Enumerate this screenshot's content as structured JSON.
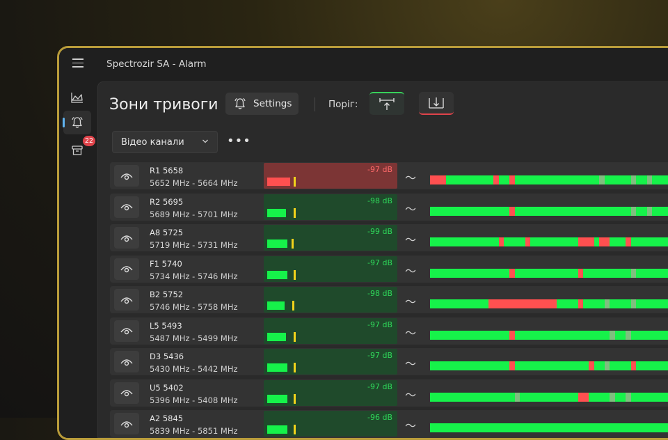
{
  "window": {
    "title": "Spectrozir SA - Alarm"
  },
  "sidebar": {
    "alarm_badge": "22"
  },
  "page": {
    "title": "Зони тривоги",
    "settings_label": "Settings",
    "threshold_label": "Поріг:",
    "filter_value": "Відео канали",
    "more_label": "•••"
  },
  "colors": {
    "ok": "#16f24a",
    "alert": "#ff5050",
    "idle": "#6f7c8c",
    "peak": "#f2d31b",
    "accent": "#37d15a"
  },
  "channels": [
    {
      "name": "R1 5658",
      "range": "5652 MHz - 5664 MHz",
      "db": "-97 dB",
      "alert": true,
      "level": 0.18,
      "peak": 0.21,
      "timeline": [
        [
          "#ff5050",
          0,
          0.03
        ],
        [
          "#16f24a",
          0.03,
          0.12
        ],
        [
          "#ff5050",
          0.12,
          0.13
        ],
        [
          "#16f24a",
          0.13,
          0.15
        ],
        [
          "#ff5050",
          0.15,
          0.16
        ],
        [
          "#16f24a",
          0.16,
          0.32
        ],
        [
          "#7fbf7f",
          0.32,
          0.33
        ],
        [
          "#16f24a",
          0.33,
          0.38
        ],
        [
          "#7fbf7f",
          0.38,
          0.39
        ],
        [
          "#16f24a",
          0.39,
          0.41
        ],
        [
          "#7fbf7f",
          0.41,
          0.42
        ],
        [
          "#16f24a",
          0.42,
          0.46
        ]
      ]
    },
    {
      "name": "R2 5695",
      "range": "5689 MHz - 5701 MHz",
      "db": "-98 dB",
      "alert": false,
      "level": 0.15,
      "peak": 0.21,
      "timeline": [
        [
          "#16f24a",
          0,
          0.15
        ],
        [
          "#ff5050",
          0.15,
          0.16
        ],
        [
          "#16f24a",
          0.16,
          0.38
        ],
        [
          "#7fbf7f",
          0.38,
          0.39
        ],
        [
          "#16f24a",
          0.39,
          0.41
        ],
        [
          "#7fbf7f",
          0.41,
          0.42
        ],
        [
          "#16f24a",
          0.42,
          0.46
        ]
      ]
    },
    {
      "name": "A8 5725",
      "range": "5719 MHz - 5731 MHz",
      "db": "-99 dB",
      "alert": false,
      "level": 0.16,
      "peak": 0.19,
      "timeline": [
        [
          "#16f24a",
          0,
          0.13
        ],
        [
          "#ff5050",
          0.13,
          0.14
        ],
        [
          "#16f24a",
          0.14,
          0.18
        ],
        [
          "#ff5050",
          0.18,
          0.19
        ],
        [
          "#16f24a",
          0.19,
          0.28
        ],
        [
          "#ff5050",
          0.28,
          0.31
        ],
        [
          "#16f24a",
          0.31,
          0.32
        ],
        [
          "#ff5050",
          0.32,
          0.34
        ],
        [
          "#16f24a",
          0.34,
          0.37
        ],
        [
          "#ff5050",
          0.37,
          0.38
        ],
        [
          "#16f24a",
          0.38,
          0.46
        ]
      ]
    },
    {
      "name": "F1 5740",
      "range": "5734 MHz - 5746 MHz",
      "db": "-97 dB",
      "alert": false,
      "level": 0.16,
      "peak": 0.21,
      "timeline": [
        [
          "#16f24a",
          0,
          0.15
        ],
        [
          "#ff5050",
          0.15,
          0.16
        ],
        [
          "#16f24a",
          0.16,
          0.28
        ],
        [
          "#ff5050",
          0.28,
          0.29
        ],
        [
          "#16f24a",
          0.29,
          0.38
        ],
        [
          "#7fbf7f",
          0.38,
          0.39
        ],
        [
          "#16f24a",
          0.39,
          0.46
        ]
      ]
    },
    {
      "name": "B2 5752",
      "range": "5746 MHz - 5758 MHz",
      "db": "-98 dB",
      "alert": false,
      "level": 0.14,
      "peak": 0.2,
      "timeline": [
        [
          "#16f24a",
          0,
          0.11
        ],
        [
          "#ff5050",
          0.11,
          0.24
        ],
        [
          "#16f24a",
          0.24,
          0.28
        ],
        [
          "#ff5050",
          0.28,
          0.29
        ],
        [
          "#16f24a",
          0.29,
          0.33
        ],
        [
          "#7fbf7f",
          0.33,
          0.34
        ],
        [
          "#16f24a",
          0.34,
          0.38
        ],
        [
          "#7fbf7f",
          0.38,
          0.39
        ],
        [
          "#16f24a",
          0.39,
          0.46
        ]
      ]
    },
    {
      "name": "L5 5493",
      "range": "5487 MHz - 5499 MHz",
      "db": "-97 dB",
      "alert": false,
      "level": 0.15,
      "peak": 0.21,
      "timeline": [
        [
          "#16f24a",
          0,
          0.15
        ],
        [
          "#ff5050",
          0.15,
          0.16
        ],
        [
          "#16f24a",
          0.16,
          0.34
        ],
        [
          "#7fbf7f",
          0.34,
          0.35
        ],
        [
          "#16f24a",
          0.35,
          0.37
        ],
        [
          "#7fbf7f",
          0.37,
          0.38
        ],
        [
          "#16f24a",
          0.38,
          0.45
        ]
      ]
    },
    {
      "name": "D3 5436",
      "range": "5430 MHz - 5442 MHz",
      "db": "-97 dB",
      "alert": false,
      "level": 0.16,
      "peak": 0.21,
      "timeline": [
        [
          "#16f24a",
          0,
          0.15
        ],
        [
          "#ff5050",
          0.15,
          0.16
        ],
        [
          "#16f24a",
          0.16,
          0.3
        ],
        [
          "#ff5050",
          0.3,
          0.31
        ],
        [
          "#16f24a",
          0.31,
          0.33
        ],
        [
          "#7fbf7f",
          0.33,
          0.34
        ],
        [
          "#16f24a",
          0.34,
          0.38
        ],
        [
          "#ff5050",
          0.38,
          0.39
        ],
        [
          "#16f24a",
          0.39,
          0.45
        ]
      ]
    },
    {
      "name": "U5 5402",
      "range": "5396 MHz - 5408 MHz",
      "db": "-97 dB",
      "alert": false,
      "level": 0.16,
      "peak": 0.21,
      "timeline": [
        [
          "#16f24a",
          0,
          0.16
        ],
        [
          "#7fbf7f",
          0.16,
          0.17
        ],
        [
          "#16f24a",
          0.17,
          0.28
        ],
        [
          "#ff5050",
          0.28,
          0.3
        ],
        [
          "#16f24a",
          0.3,
          0.34
        ],
        [
          "#7fbf7f",
          0.34,
          0.35
        ],
        [
          "#16f24a",
          0.35,
          0.37
        ],
        [
          "#7fbf7f",
          0.37,
          0.38
        ],
        [
          "#16f24a",
          0.38,
          0.46
        ]
      ]
    },
    {
      "name": "A2 5845",
      "range": "5839 MHz - 5851 MHz",
      "db": "-96 dB",
      "alert": false,
      "level": 0.16,
      "peak": 0.21,
      "timeline": [
        [
          "#16f24a",
          0,
          0.46
        ]
      ]
    }
  ]
}
